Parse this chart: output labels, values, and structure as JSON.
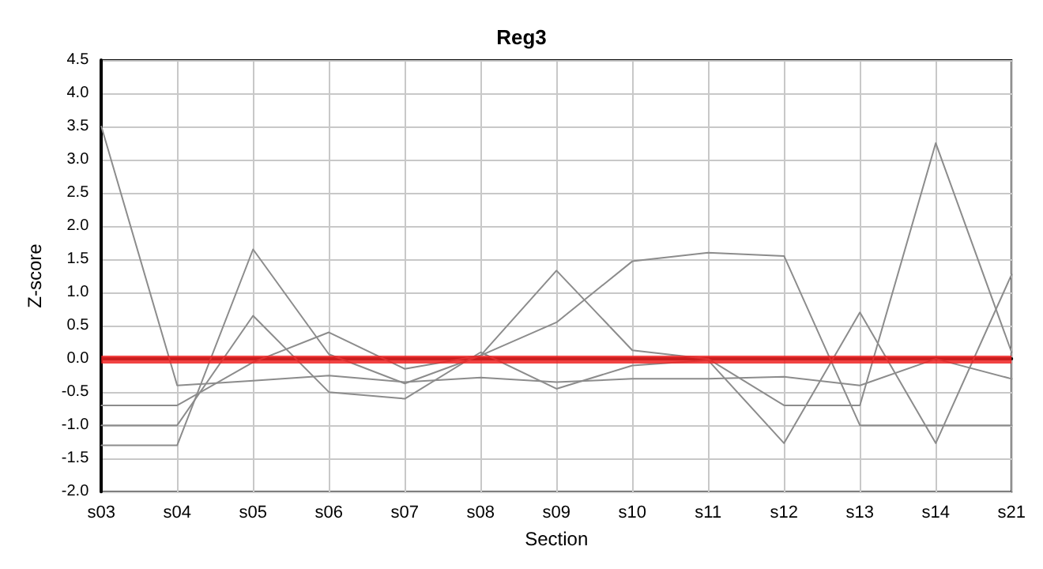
{
  "chart_data": {
    "type": "line",
    "title": "Reg3",
    "xlabel": "Section",
    "ylabel": "Z-score",
    "categories": [
      "s03",
      "s04",
      "s05",
      "s06",
      "s07",
      "s08",
      "s09",
      "s10",
      "s11",
      "s12",
      "s13",
      "s14",
      "s21"
    ],
    "series": [
      {
        "color": "#8c8c8c",
        "values": [
          3.5,
          -0.4,
          -0.33,
          -0.25,
          -0.35,
          -0.28,
          -0.35,
          -0.3,
          -0.3,
          -0.27,
          -0.4,
          0.0,
          -0.3
        ]
      },
      {
        "color": "#8c8c8c",
        "values": [
          -0.7,
          -0.7,
          -0.05,
          0.4,
          -0.15,
          0.05,
          0.55,
          1.47,
          1.6,
          1.55,
          -1.0,
          -1.0,
          -1.0
        ]
      },
      {
        "color": "#8c8c8c",
        "values": [
          -1.3,
          -1.3,
          1.65,
          0.07,
          -0.37,
          0.05,
          1.33,
          0.13,
          0.0,
          -0.7,
          -0.7,
          3.25,
          0.1
        ]
      },
      {
        "color": "#8c8c8c",
        "values": [
          -1.0,
          -1.0,
          0.65,
          -0.5,
          -0.6,
          0.1,
          -0.45,
          -0.1,
          -0.02,
          -1.27,
          0.7,
          -1.27,
          1.27
        ]
      }
    ],
    "ylim": [
      -2.0,
      4.5
    ],
    "yticks": [
      {
        "value": -2,
        "label": "-2.0"
      },
      -1.5,
      {
        "value": -1,
        "label": "-1.0"
      },
      -0.5,
      {
        "value": 0,
        "label": "0.0"
      },
      0.5,
      {
        "value": 1,
        "label": "1.0"
      },
      1.5,
      {
        "value": 2,
        "label": "2.0"
      },
      2.5,
      {
        "value": 3,
        "label": "3.0"
      },
      3.5,
      {
        "value": 4,
        "label": "4.0"
      },
      4.5
    ],
    "ref_lines": [
      {
        "axis": "y",
        "value": 0,
        "color": "#ee2222"
      }
    ],
    "grid": true,
    "marker": "none",
    "line_style": "solid"
  }
}
